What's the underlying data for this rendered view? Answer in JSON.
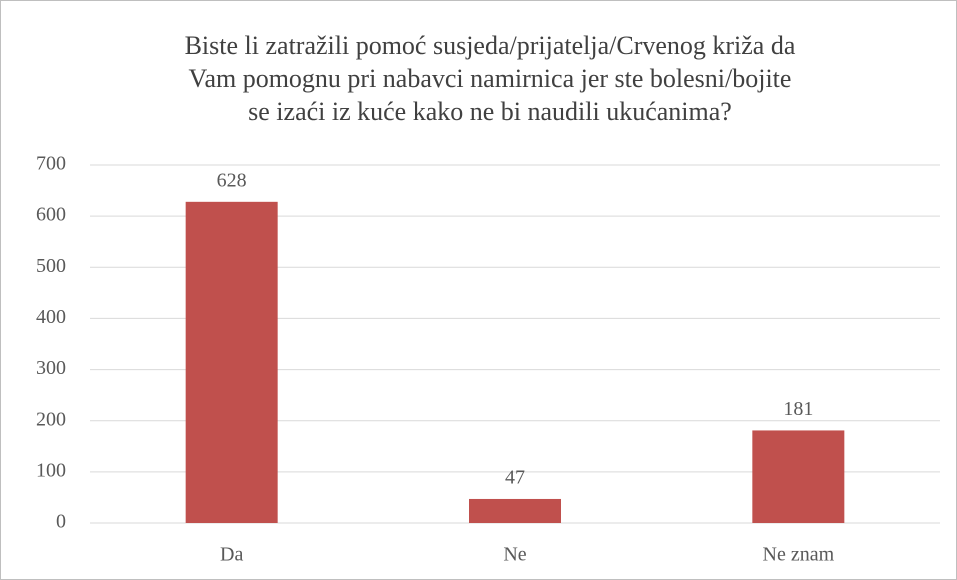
{
  "chart_data": {
    "type": "bar",
    "title": [
      "Biste li zatražili pomoć susjeda/prijatelja/Crvenog križa da",
      "Vam pomognu pri nabavci namirnica jer ste bolesni/bojite",
      "se izaći iz kuće kako ne bi naudili ukućanima?"
    ],
    "categories": [
      "Da",
      "Ne",
      "Ne znam"
    ],
    "values": [
      628,
      47,
      181
    ],
    "color": "#c0504d",
    "ylim": [
      0,
      700
    ],
    "yticks": [
      0,
      100,
      200,
      300,
      400,
      500,
      600,
      700
    ],
    "grid": true
  }
}
